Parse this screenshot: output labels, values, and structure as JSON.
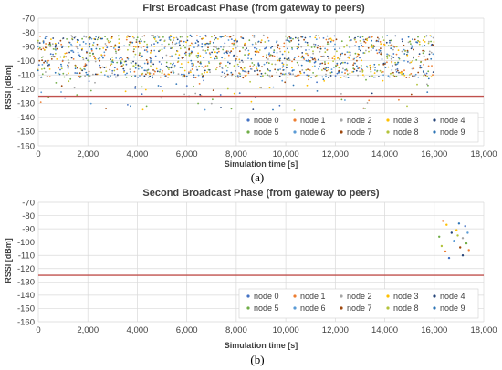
{
  "panels": [
    "(a)",
    "(b)"
  ],
  "colors": {
    "node 0": "#4472c4",
    "node 1": "#ed7d31",
    "node 2": "#a5a5a5",
    "node 3": "#ffc000",
    "node 4": "#264478",
    "node 5": "#70ad47",
    "node 6": "#5b9bd5",
    "node 7": "#9e480e",
    "node 8": "#b3c33b",
    "node 9": "#2e75b6",
    "threshold": "#c0504d",
    "grid": "#d9d9d9",
    "text": "#404040"
  },
  "chart_data": [
    {
      "type": "scatter",
      "title": "First Broadcast Phase (from gateway to peers)",
      "xlabel": "Simulation time [s]",
      "ylabel": "RSSI [dBm]",
      "xlim": [
        0,
        18000
      ],
      "ylim": [
        -160,
        -70
      ],
      "xticks": [
        "0",
        "2,000",
        "4,000",
        "6,000",
        "8,000",
        "10,000",
        "12,000",
        "14,000",
        "16,000",
        "18,000"
      ],
      "yticks": [
        "-70",
        "-80",
        "-90",
        "-100",
        "-110",
        "-120",
        "-130",
        "-140",
        "-150",
        "-160"
      ],
      "grid": true,
      "legend_position": "bottom-right",
      "threshold_line": -125,
      "series_names": [
        "node 0",
        "node 1",
        "node 2",
        "node 3",
        "node 4",
        "node 5",
        "node 6",
        "node 7",
        "node 8",
        "node 9"
      ],
      "dense_region": {
        "x_range": [
          0,
          16000
        ],
        "y_band": [
          -112,
          -82
        ],
        "outlier_y_range": [
          -135,
          -112
        ],
        "sample_interval": 60
      }
    },
    {
      "type": "scatter",
      "title": "Second Broadcast Phase (from gateway to peers)",
      "xlabel": "Simulation time [s]",
      "ylabel": "RSSI [dBm]",
      "xlim": [
        0,
        18000
      ],
      "ylim": [
        -160,
        -70
      ],
      "xticks": [
        "0",
        "2,000",
        "4,000",
        "6,000",
        "8,000",
        "10,000",
        "12,000",
        "14,000",
        "16,000",
        "18,000"
      ],
      "yticks": [
        "-70",
        "-80",
        "-90",
        "-100",
        "-110",
        "-120",
        "-130",
        "-140",
        "-150",
        "-160"
      ],
      "grid": true,
      "legend_position": "bottom-right",
      "threshold_line": -125,
      "series_names": [
        "node 0",
        "node 1",
        "node 2",
        "node 3",
        "node 4",
        "node 5",
        "node 6",
        "node 7",
        "node 8",
        "node 9"
      ],
      "points": [
        {
          "x": 16350,
          "y": -84,
          "node": 1
        },
        {
          "x": 16500,
          "y": -87,
          "node": 3
        },
        {
          "x": 16200,
          "y": -96,
          "node": 5
        },
        {
          "x": 16300,
          "y": -103,
          "node": 8
        },
        {
          "x": 16450,
          "y": -107,
          "node": 1
        },
        {
          "x": 16600,
          "y": -112,
          "node": 0
        },
        {
          "x": 16700,
          "y": -93,
          "node": 4
        },
        {
          "x": 16800,
          "y": -99,
          "node": 6
        },
        {
          "x": 16900,
          "y": -91,
          "node": 3
        },
        {
          "x": 17000,
          "y": -86,
          "node": 9
        },
        {
          "x": 17050,
          "y": -104,
          "node": 7
        },
        {
          "x": 17150,
          "y": -97,
          "node": 2
        },
        {
          "x": 17250,
          "y": -88,
          "node": 0
        },
        {
          "x": 17300,
          "y": -101,
          "node": 5
        },
        {
          "x": 17400,
          "y": -106,
          "node": 1
        },
        {
          "x": 17150,
          "y": -110,
          "node": 4
        },
        {
          "x": 16950,
          "y": -95,
          "node": 8
        },
        {
          "x": 17350,
          "y": -93,
          "node": 6
        }
      ]
    }
  ]
}
